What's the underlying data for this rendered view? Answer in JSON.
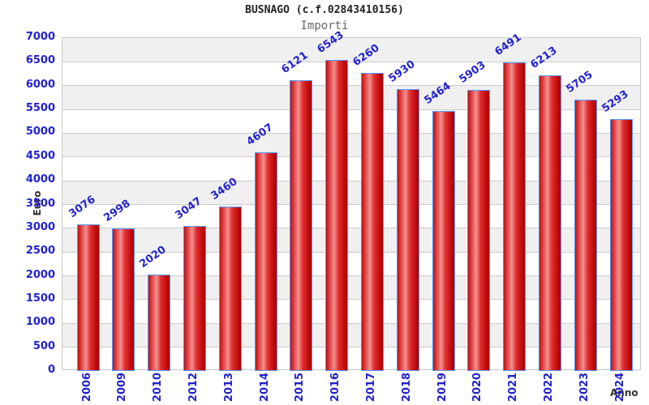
{
  "title": "BUSNAGO (c.f.02843410156)",
  "subtitle": "Importi",
  "colors": {
    "label_blue": "#2222cc",
    "bar_border_blue": "#5599ff",
    "bar_red_dark": "#a80000",
    "bar_red_light": "#f59090",
    "band_gray": "#f0f0f0",
    "gridline_gray": "#cccccc",
    "axis_title_dark": "#333333",
    "subtitle_gray": "#666666"
  },
  "chart_data": {
    "type": "bar",
    "title": "BUSNAGO (c.f.02843410156)",
    "subtitle": "Importi",
    "xlabel": "Anno",
    "ylabel": "Euro",
    "categories": [
      "2006",
      "2009",
      "2010",
      "2012",
      "2013",
      "2014",
      "2015",
      "2016",
      "2017",
      "2018",
      "2019",
      "2020",
      "2021",
      "2022",
      "2023",
      "2024"
    ],
    "values": [
      3076,
      2998,
      2020,
      3047,
      3460,
      4607,
      6121,
      6543,
      6260,
      5930,
      5464,
      5903,
      6491,
      6213,
      5705,
      5293
    ],
    "ylim": [
      0,
      7000
    ],
    "ytick_step": 500,
    "yticks": [
      0,
      500,
      1000,
      1500,
      2000,
      2500,
      3000,
      3500,
      4000,
      4500,
      5000,
      5500,
      6000,
      6500,
      7000
    ],
    "grid": true,
    "band_fill": "alternating horizontal 500-unit bands, gray/white",
    "legend_position": "none",
    "value_labels": "rotated above bars"
  }
}
